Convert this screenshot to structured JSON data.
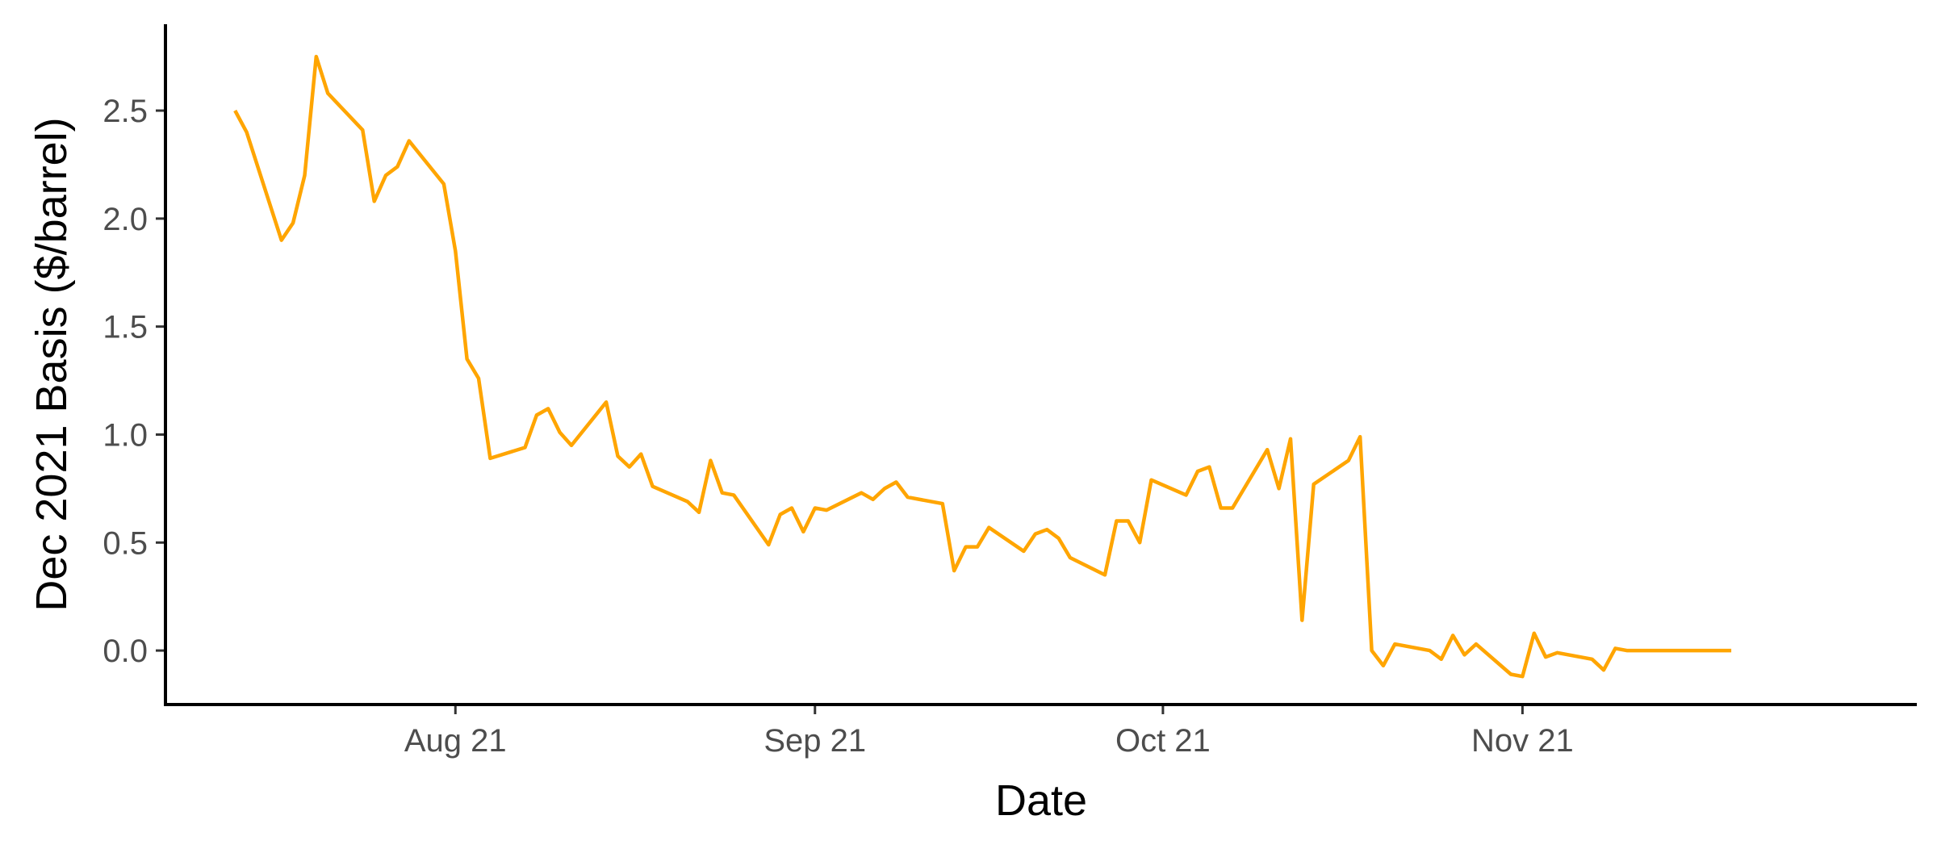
{
  "chart_data": {
    "type": "line",
    "xlabel": "Date",
    "ylabel": "Dec 2021 Basis ($/barrel)",
    "xlim": [
      "2021-07-07",
      "2021-12-05"
    ],
    "ylim": [
      -0.25,
      2.9
    ],
    "x_ticks": [
      {
        "date": "2021-08-01",
        "label": "Aug 21"
      },
      {
        "date": "2021-09-01",
        "label": "Sep 21"
      },
      {
        "date": "2021-10-01",
        "label": "Oct 21"
      },
      {
        "date": "2021-11-01",
        "label": "Nov 21"
      }
    ],
    "y_ticks": [
      {
        "value": 0.0,
        "label": "0.0"
      },
      {
        "value": 0.5,
        "label": "0.5"
      },
      {
        "value": 1.0,
        "label": "1.0"
      },
      {
        "value": 1.5,
        "label": "1.5"
      },
      {
        "value": 2.0,
        "label": "2.0"
      },
      {
        "value": 2.5,
        "label": "2.5"
      }
    ],
    "grid": false,
    "colors": {
      "line": "#FFA500",
      "axis": "#000000",
      "tick_text": "#4d4d4d"
    },
    "series": [
      {
        "x": [
          "2021-07-13",
          "2021-07-14",
          "2021-07-17",
          "2021-07-18",
          "2021-07-19",
          "2021-07-20",
          "2021-07-21",
          "2021-07-24",
          "2021-07-25",
          "2021-07-26",
          "2021-07-27",
          "2021-07-28",
          "2021-07-31",
          "2021-08-01",
          "2021-08-02",
          "2021-08-03",
          "2021-08-04",
          "2021-08-07",
          "2021-08-08",
          "2021-08-09",
          "2021-08-10",
          "2021-08-11",
          "2021-08-14",
          "2021-08-15",
          "2021-08-16",
          "2021-08-17",
          "2021-08-18",
          "2021-08-21",
          "2021-08-22",
          "2021-08-23",
          "2021-08-24",
          "2021-08-25",
          "2021-08-28",
          "2021-08-29",
          "2021-08-30",
          "2021-08-31",
          "2021-09-01",
          "2021-09-02",
          "2021-09-05",
          "2021-09-06",
          "2021-09-07",
          "2021-09-08",
          "2021-09-09",
          "2021-09-12",
          "2021-09-13",
          "2021-09-14",
          "2021-09-15",
          "2021-09-16",
          "2021-09-19",
          "2021-09-20",
          "2021-09-21",
          "2021-09-22",
          "2021-09-23",
          "2021-09-26",
          "2021-09-27",
          "2021-09-28",
          "2021-09-29",
          "2021-09-30",
          "2021-10-03",
          "2021-10-04",
          "2021-10-05",
          "2021-10-06",
          "2021-10-07",
          "2021-10-10",
          "2021-10-11",
          "2021-10-12",
          "2021-10-13",
          "2021-10-14",
          "2021-10-17",
          "2021-10-18",
          "2021-10-19",
          "2021-10-20",
          "2021-10-21",
          "2021-10-24",
          "2021-10-25",
          "2021-10-26",
          "2021-10-27",
          "2021-10-28",
          "2021-10-31",
          "2021-11-01",
          "2021-11-02",
          "2021-11-03",
          "2021-11-04",
          "2021-11-07",
          "2021-11-08",
          "2021-11-09",
          "2021-11-10",
          "2021-11-11",
          "2021-11-14",
          "2021-11-15",
          "2021-11-16",
          "2021-11-17",
          "2021-11-18",
          "2021-11-19"
        ],
        "values": [
          2.5,
          2.4,
          1.9,
          1.98,
          2.2,
          2.75,
          2.58,
          2.41,
          2.08,
          2.2,
          2.24,
          2.36,
          2.16,
          1.85,
          1.35,
          1.26,
          0.89,
          0.94,
          1.09,
          1.12,
          1.01,
          0.95,
          1.15,
          0.9,
          0.85,
          0.91,
          0.76,
          0.69,
          0.64,
          0.88,
          0.73,
          0.72,
          0.49,
          0.63,
          0.66,
          0.55,
          0.66,
          0.65,
          0.73,
          0.7,
          0.75,
          0.78,
          0.71,
          0.68,
          0.37,
          0.48,
          0.48,
          0.57,
          0.46,
          0.54,
          0.56,
          0.52,
          0.43,
          0.35,
          0.6,
          0.6,
          0.5,
          0.79,
          0.72,
          0.83,
          0.85,
          0.66,
          0.66,
          0.93,
          0.75,
          0.98,
          0.14,
          0.77,
          0.88,
          0.99,
          0.0,
          -0.07,
          0.03,
          0.0,
          -0.04,
          0.07,
          -0.02,
          0.03,
          -0.11,
          -0.12,
          0.08,
          -0.03,
          -0.01,
          -0.04,
          -0.09,
          0.01,
          0.0,
          0.0,
          0.0,
          0.0,
          0.0,
          0.0,
          0.0,
          0.0
        ]
      }
    ]
  }
}
